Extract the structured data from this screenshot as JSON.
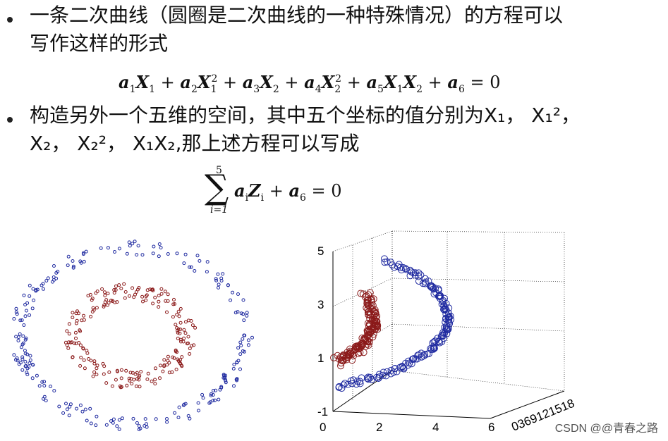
{
  "bullets": [
    {
      "line1": "一条二次曲线（圆圈是二次曲线的一种特殊情况）的方程可以",
      "line2": "写作这样的形式"
    },
    {
      "line1": "构造另外一个五维的空间，其中五个坐标的值分别为X₁， X₁²，",
      "line2": "X₂， X₂²， X₁X₂,那上述方程可以写成"
    }
  ],
  "equation1": {
    "plain": "a1X1 + a2X1² + a3X2 + a4X2² + a5X1X2 + a6 = 0"
  },
  "equation2": {
    "sigma_top": "5",
    "sigma_bottom": "i=1",
    "plain": "Σ aiZi + a6 = 0"
  },
  "left_plot": {
    "type": "scatter",
    "series": [
      {
        "color": "#1f2aa0",
        "shape": "circle"
      },
      {
        "color": "#8b1a1a",
        "shape": "circle"
      }
    ]
  },
  "chart_data": {
    "type": "scatter",
    "yticks": [
      "5",
      "3",
      "1",
      "-1"
    ],
    "xticks": [
      "0",
      "2",
      "4",
      "6"
    ],
    "zticks_text": "0369121518",
    "ylim": [
      -1,
      5
    ],
    "xlim": [
      0,
      6
    ],
    "series": [
      {
        "color": "#1f2aa0"
      },
      {
        "color": "#8b1a1a"
      }
    ]
  },
  "watermark": "CSDN @@青春之路"
}
